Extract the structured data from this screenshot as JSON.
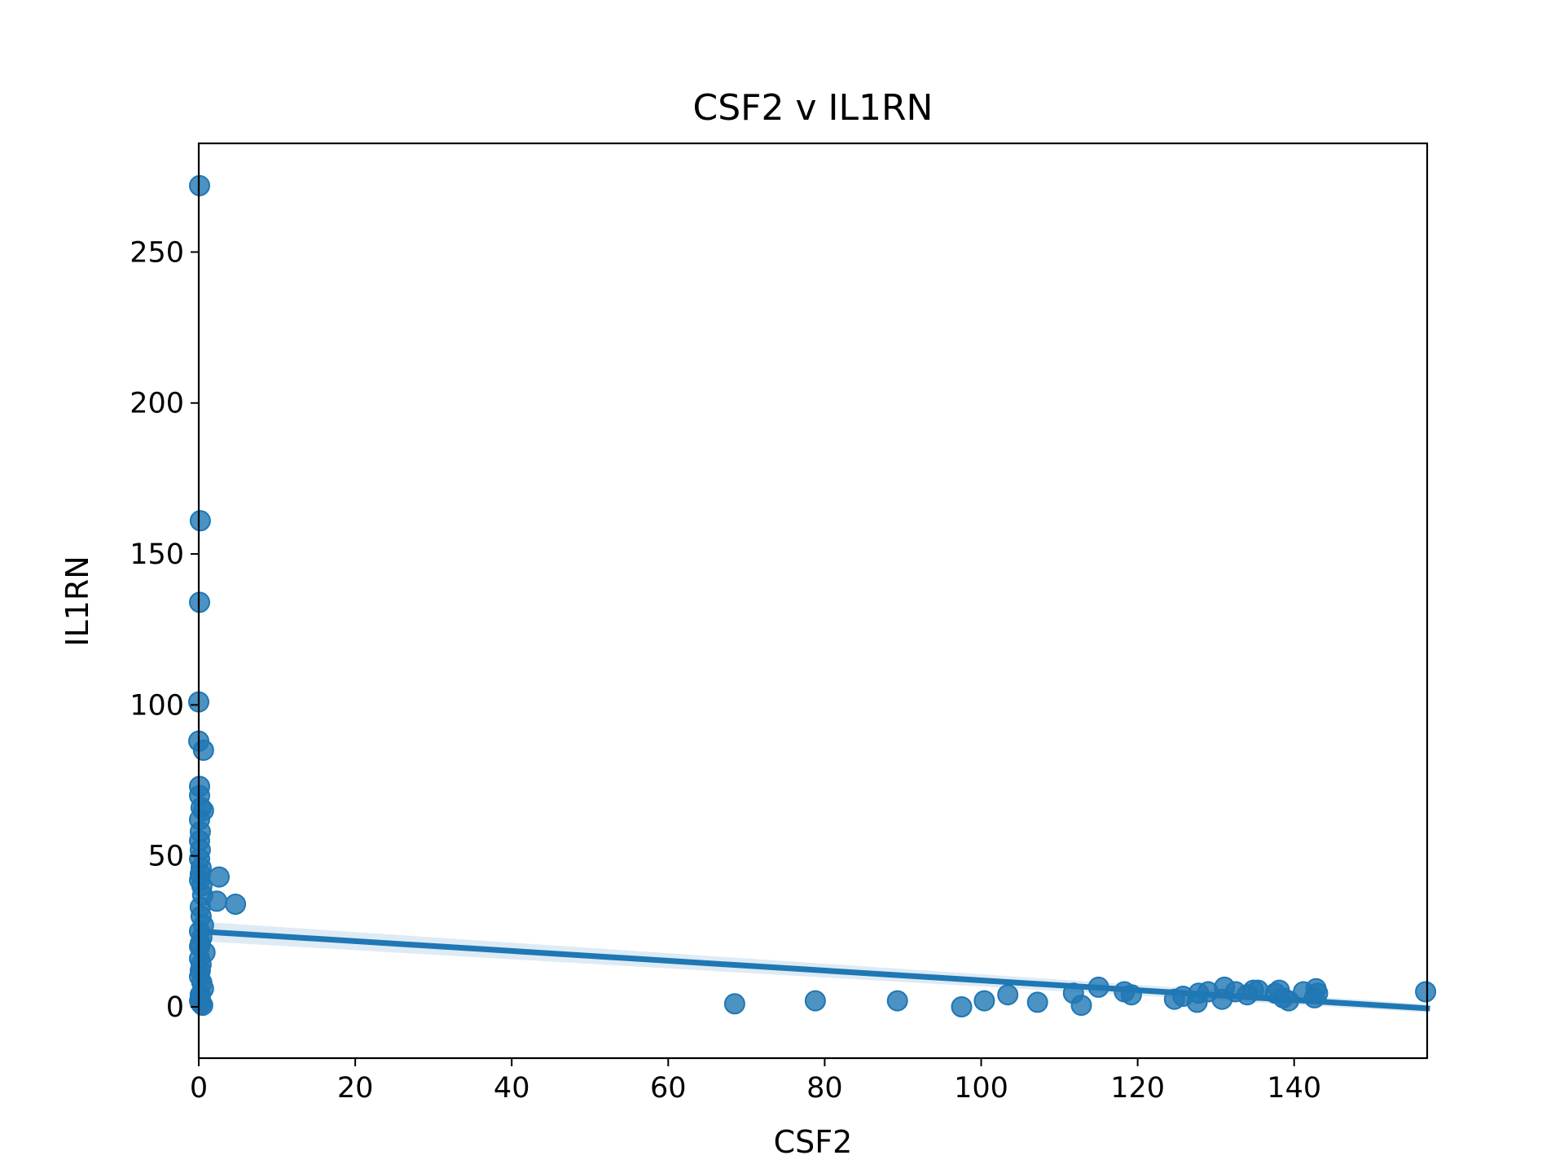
{
  "chart_data": {
    "type": "scatter",
    "title": "CSF2 v IL1RN",
    "xlabel": "CSF2",
    "ylabel": "IL1RN",
    "xlim": [
      0,
      157
    ],
    "ylim": [
      -17,
      286
    ],
    "xticks": [
      0,
      20,
      40,
      60,
      80,
      100,
      120,
      140
    ],
    "yticks": [
      0,
      50,
      100,
      150,
      200,
      250
    ],
    "grid": false,
    "legend": "none",
    "color": "#1f77b4",
    "points": [
      [
        0.1,
        272
      ],
      [
        0.2,
        161
      ],
      [
        0.1,
        134
      ],
      [
        0.0,
        101
      ],
      [
        0.0,
        88
      ],
      [
        0.6,
        85
      ],
      [
        0.1,
        73
      ],
      [
        0.1,
        70
      ],
      [
        0.3,
        66
      ],
      [
        0.6,
        65
      ],
      [
        0.1,
        62
      ],
      [
        0.2,
        58
      ],
      [
        0.1,
        55
      ],
      [
        0.2,
        52
      ],
      [
        0.1,
        49
      ],
      [
        0.3,
        46
      ],
      [
        0.2,
        44
      ],
      [
        0.1,
        42
      ],
      [
        2.6,
        43
      ],
      [
        0.4,
        40
      ],
      [
        2.3,
        35
      ],
      [
        4.7,
        34
      ],
      [
        0.5,
        37
      ],
      [
        0.2,
        33
      ],
      [
        0.3,
        30
      ],
      [
        0.6,
        27
      ],
      [
        0.1,
        25
      ],
      [
        0.4,
        23
      ],
      [
        0.2,
        21
      ],
      [
        0.8,
        18
      ],
      [
        0.1,
        16
      ],
      [
        0.3,
        14
      ],
      [
        0.2,
        12
      ],
      [
        0.1,
        10
      ],
      [
        0.4,
        8
      ],
      [
        0.6,
        6
      ],
      [
        0.2,
        4
      ],
      [
        0.1,
        2
      ],
      [
        0.3,
        1
      ],
      [
        0.5,
        0.5
      ],
      [
        0.2,
        3
      ],
      [
        0.1,
        20
      ],
      [
        68.5,
        1
      ],
      [
        78.8,
        2
      ],
      [
        89.3,
        2
      ],
      [
        97.5,
        0
      ],
      [
        100.4,
        2
      ],
      [
        103.4,
        4
      ],
      [
        107.2,
        1.5
      ],
      [
        111.8,
        4.5
      ],
      [
        112.8,
        0.5
      ],
      [
        115,
        6.5
      ],
      [
        118.3,
        5
      ],
      [
        119.2,
        4
      ],
      [
        124.7,
        2.5
      ],
      [
        125.8,
        3.5
      ],
      [
        127.6,
        1.5
      ],
      [
        127.8,
        4.5
      ],
      [
        129,
        5
      ],
      [
        130.8,
        2.5
      ],
      [
        131.1,
        6.5
      ],
      [
        132.5,
        5
      ],
      [
        134,
        4
      ],
      [
        134.8,
        5.5
      ],
      [
        135.4,
        5.5
      ],
      [
        137.6,
        4.5
      ],
      [
        138.1,
        5.5
      ],
      [
        138.6,
        3
      ],
      [
        139.3,
        2
      ],
      [
        141.2,
        5
      ],
      [
        142.6,
        3
      ],
      [
        142.8,
        6
      ],
      [
        143,
        4.5
      ],
      [
        156.8,
        5
      ]
    ],
    "regression": {
      "x": [
        0,
        157
      ],
      "y": [
        25,
        -0.5
      ]
    }
  }
}
